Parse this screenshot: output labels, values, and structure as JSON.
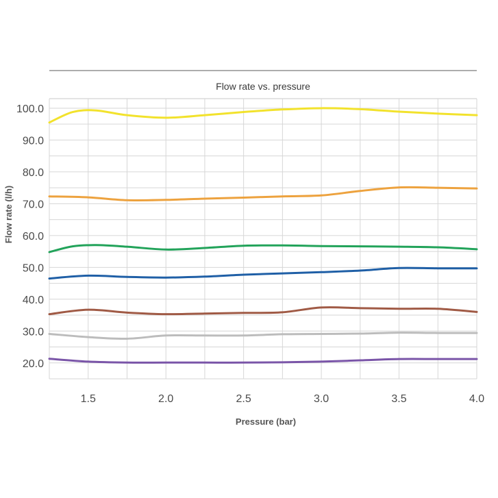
{
  "chart_data": {
    "type": "line",
    "title": "Flow rate vs. pressure",
    "xlabel": "Pressure (bar)",
    "ylabel": "Flow rate (l/h)",
    "xlim": [
      1.25,
      4.0
    ],
    "ylim": [
      15.0,
      103.0
    ],
    "xticks": [
      1.5,
      2.0,
      2.5,
      3.0,
      3.5,
      4.0
    ],
    "xtick_labels": [
      "1.5",
      "2.0",
      "2.5",
      "3.0",
      "3.5",
      "4.0"
    ],
    "yticks": [
      20,
      30,
      40,
      50,
      60,
      70,
      80,
      90,
      100
    ],
    "ytick_labels": [
      "20.0",
      "30.0",
      "40.0",
      "50.0",
      "60.0",
      "70.0",
      "80.0",
      "90.0",
      "100.0"
    ],
    "grid": true,
    "legend": "none",
    "series": [
      {
        "color": "#f2e22c",
        "x": [
          1.25,
          1.4,
          1.55,
          1.75,
          2.0,
          2.25,
          2.5,
          2.75,
          3.0,
          3.25,
          3.5,
          3.75,
          4.0
        ],
        "y": [
          95.5,
          98.8,
          99.3,
          97.8,
          97.0,
          97.8,
          98.8,
          99.6,
          100.0,
          99.7,
          98.9,
          98.3,
          97.8
        ]
      },
      {
        "color": "#eda23e",
        "x": [
          1.25,
          1.5,
          1.75,
          2.0,
          2.25,
          2.5,
          2.75,
          3.0,
          3.25,
          3.5,
          3.75,
          4.0
        ],
        "y": [
          72.3,
          72.0,
          71.1,
          71.2,
          71.6,
          71.9,
          72.3,
          72.6,
          74.0,
          75.1,
          75.0,
          74.8
        ]
      },
      {
        "color": "#22a35a",
        "x": [
          1.25,
          1.4,
          1.55,
          1.75,
          2.0,
          2.25,
          2.5,
          2.75,
          3.0,
          3.25,
          3.5,
          3.75,
          4.0
        ],
        "y": [
          54.8,
          56.6,
          57.0,
          56.5,
          55.6,
          56.1,
          56.8,
          56.9,
          56.7,
          56.6,
          56.5,
          56.3,
          55.7
        ]
      },
      {
        "color": "#1f5fa6",
        "x": [
          1.25,
          1.5,
          1.75,
          2.0,
          2.25,
          2.5,
          2.75,
          3.0,
          3.25,
          3.5,
          3.75,
          4.0
        ],
        "y": [
          46.5,
          47.4,
          47.0,
          46.8,
          47.1,
          47.7,
          48.1,
          48.5,
          49.0,
          49.8,
          49.7,
          49.7
        ]
      },
      {
        "color": "#a05a45",
        "x": [
          1.25,
          1.5,
          1.75,
          2.0,
          2.25,
          2.5,
          2.75,
          3.0,
          3.25,
          3.5,
          3.75,
          4.0
        ],
        "y": [
          35.3,
          36.7,
          35.8,
          35.3,
          35.5,
          35.7,
          35.9,
          37.4,
          37.2,
          37.0,
          37.0,
          36.0
        ]
      },
      {
        "color": "#bcbcbc",
        "x": [
          1.25,
          1.5,
          1.75,
          2.0,
          2.25,
          2.5,
          2.75,
          3.0,
          3.25,
          3.5,
          3.75,
          4.0
        ],
        "y": [
          29.1,
          28.1,
          27.6,
          28.6,
          28.6,
          28.6,
          29.0,
          29.1,
          29.2,
          29.5,
          29.4,
          29.4
        ]
      },
      {
        "color": "#7a55a8",
        "x": [
          1.25,
          1.5,
          1.75,
          2.0,
          2.25,
          2.5,
          2.75,
          3.0,
          3.25,
          3.5,
          3.75,
          4.0
        ],
        "y": [
          21.3,
          20.4,
          20.1,
          20.1,
          20.1,
          20.1,
          20.2,
          20.4,
          20.8,
          21.2,
          21.2,
          21.2
        ]
      }
    ]
  }
}
